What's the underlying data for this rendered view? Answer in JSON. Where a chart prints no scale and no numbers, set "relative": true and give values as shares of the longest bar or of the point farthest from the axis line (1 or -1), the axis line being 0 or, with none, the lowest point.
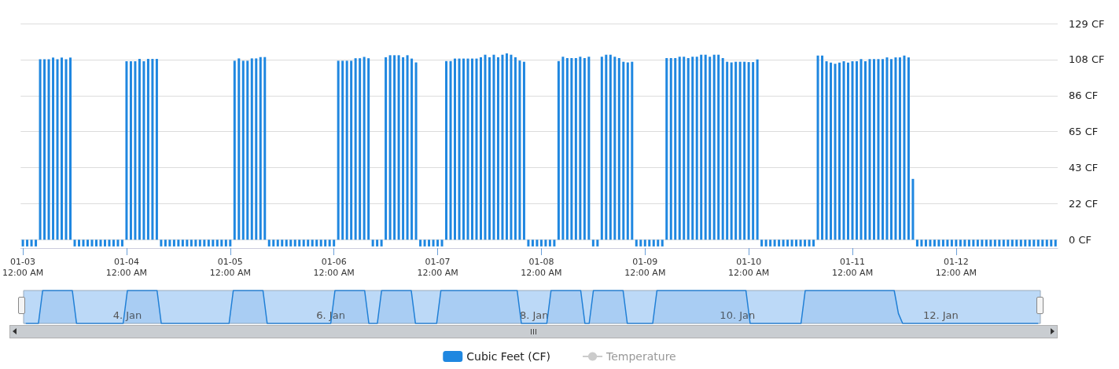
{
  "chart_data": [
    {
      "type": "bar",
      "categories": [
        "01-03\n12:00 AM",
        null,
        null,
        null,
        null,
        null,
        null,
        null,
        null,
        null,
        null,
        null,
        null,
        null,
        null,
        null,
        null,
        null,
        null,
        null,
        null,
        null,
        null,
        null,
        "01-04\n12:00 AM",
        null,
        null,
        null,
        null,
        null,
        null,
        null,
        null,
        null,
        null,
        null,
        null,
        null,
        null,
        null,
        null,
        null,
        null,
        null,
        null,
        null,
        null,
        null,
        "01-05\n12:00 AM",
        null,
        null,
        null,
        null,
        null,
        null,
        null,
        null,
        null,
        null,
        null,
        null,
        null,
        null,
        null,
        null,
        null,
        null,
        null,
        null,
        null,
        null,
        null,
        "01-06\n12:00 AM",
        null,
        null,
        null,
        null,
        null,
        null,
        null,
        null,
        null,
        null,
        null,
        null,
        null,
        null,
        null,
        null,
        null,
        null,
        null,
        null,
        null,
        null,
        null,
        "01-07\n12:00 AM",
        null,
        null,
        null,
        null,
        null,
        null,
        null,
        null,
        null,
        null,
        null,
        null,
        null,
        null,
        null,
        null,
        null,
        null,
        null,
        null,
        null,
        null,
        null,
        "01-08\n12:00 AM",
        null,
        null,
        null,
        null,
        null,
        null,
        null,
        null,
        null,
        null,
        null,
        null,
        null,
        null,
        null,
        null,
        null,
        null,
        null,
        null,
        null,
        null,
        null,
        "01-09\n12:00 AM",
        null,
        null,
        null,
        null,
        null,
        null,
        null,
        null,
        null,
        null,
        null,
        null,
        null,
        null,
        null,
        null,
        null,
        null,
        null,
        null,
        null,
        null,
        null,
        "01-10\n12:00 AM",
        null,
        null,
        null,
        null,
        null,
        null,
        null,
        null,
        null,
        null,
        null,
        null,
        null,
        null,
        null,
        null,
        null,
        null,
        null,
        null,
        null,
        null,
        null,
        "01-11\n12:00 AM",
        null,
        null,
        null,
        null,
        null,
        null,
        null,
        null,
        null,
        null,
        null,
        null,
        null,
        null,
        null,
        null,
        null,
        null,
        null,
        null,
        null,
        null,
        null,
        "01-12\n12:00 AM",
        null,
        null,
        null,
        null,
        null,
        null,
        null,
        null,
        null,
        null,
        null,
        null,
        null,
        null,
        null,
        null,
        null,
        null,
        null,
        null,
        null,
        null,
        null
      ],
      "ylim": [
        -5,
        129
      ],
      "yticks": [
        {
          "value": 0,
          "label": "0 CF"
        },
        {
          "value": 21.5,
          "label": "22 CF"
        },
        {
          "value": 43,
          "label": "43 CF"
        },
        {
          "value": 64.5,
          "label": "65 CF"
        },
        {
          "value": 86,
          "label": "86 CF"
        },
        {
          "value": 107.5,
          "label": "108 CF"
        },
        {
          "value": 129,
          "label": "129 CF"
        }
      ],
      "grid": "y",
      "legend": "bottom",
      "series": [
        {
          "name": "Cubic Feet (CF)",
          "color": "#1f87e0",
          "values": [
            -4,
            -4,
            -4,
            -4,
            107.7,
            107.7,
            107.7,
            108.7,
            107.7,
            108.7,
            107.7,
            108.7,
            -4,
            -4,
            -4,
            -4,
            -4,
            -4,
            -4,
            -4,
            -4,
            -4,
            -4,
            -4,
            106.5,
            106.5,
            106.5,
            107.9,
            106.5,
            107.9,
            107.9,
            107.9,
            -4,
            -4,
            -4,
            -4,
            -4,
            -4,
            -4,
            -4,
            -4,
            -4,
            -4,
            -4,
            -4,
            -4,
            -4,
            -4,
            -4,
            106.8,
            108.2,
            106.8,
            106.8,
            108.2,
            108.2,
            109,
            109,
            -4,
            -4,
            -4,
            -4,
            -4,
            -4,
            -4,
            -4,
            -4,
            -4,
            -4,
            -4,
            -4,
            -4,
            -4,
            -4,
            106.8,
            106.8,
            106.8,
            106.8,
            108.3,
            108.3,
            109.1,
            108.3,
            -4,
            -4,
            -4,
            108.9,
            110.1,
            110.1,
            110.1,
            108.9,
            110.1,
            108.1,
            105.8,
            -4,
            -4,
            -4,
            -4,
            -4,
            -4,
            106.6,
            106.6,
            108.1,
            108.1,
            108.1,
            108.1,
            108.1,
            108.1,
            108.9,
            110.4,
            108.9,
            110.4,
            108.9,
            110.4,
            111.2,
            110.4,
            108.9,
            106.9,
            106.2,
            -4,
            -4,
            -4,
            -4,
            -4,
            -4,
            -4,
            106.6,
            109.2,
            108.4,
            108.4,
            108.4,
            109.2,
            108.4,
            109.2,
            -4,
            -4,
            109.2,
            110.4,
            110.4,
            109.2,
            108.4,
            106.2,
            105.8,
            106.2,
            -4,
            -4,
            -4,
            -4,
            -4,
            -4,
            -4,
            108.4,
            108.4,
            108.4,
            109.2,
            109.2,
            108.4,
            109.2,
            109.2,
            110.4,
            110.4,
            109.2,
            110.4,
            110.4,
            108.4,
            106.2,
            105.8,
            106.2,
            106.2,
            106.2,
            106,
            106,
            107.6,
            -4,
            -4,
            -4,
            -4,
            -4,
            -4,
            -4,
            -4,
            -4,
            -4,
            -4,
            -4,
            -4,
            109.9,
            109.9,
            106.5,
            105.7,
            105,
            105.7,
            106.5,
            105.7,
            106.5,
            106.5,
            107.8,
            106.5,
            107.8,
            107.8,
            107.8,
            107.8,
            108.8,
            107.8,
            108.8,
            108.8,
            109.9,
            108.8,
            36.3,
            -4,
            -4,
            -4,
            -4,
            -4,
            -4,
            -4,
            -4,
            -4,
            -4,
            -4,
            -4,
            -4,
            -4,
            -4,
            -4,
            -4,
            -4,
            -4,
            -4,
            -4,
            -4,
            -4,
            -4,
            -4,
            -4,
            -4,
            -4,
            -4,
            -4,
            -4,
            -4,
            -4
          ]
        },
        {
          "name": "Temperature",
          "type": "line",
          "color": "#cccccc",
          "values": [
            null,
            null,
            null,
            null,
            null,
            null,
            null,
            null,
            null,
            null,
            null,
            null,
            null,
            null,
            null,
            null,
            null,
            null,
            null,
            null,
            null,
            null,
            null,
            null,
            null,
            null,
            null,
            null,
            null,
            null,
            null,
            null,
            null,
            null,
            null,
            null,
            null,
            null,
            null,
            null,
            null,
            null,
            null,
            null,
            null,
            null,
            null,
            null,
            null,
            null,
            null,
            null,
            null,
            null,
            null,
            null,
            null,
            null,
            null,
            null,
            null,
            null,
            null,
            null,
            null,
            null,
            null,
            null,
            null,
            null,
            null,
            null,
            null,
            null,
            null,
            null,
            null,
            null,
            null,
            null,
            null,
            null,
            null,
            null,
            null,
            null,
            null,
            null,
            null,
            null,
            null,
            null,
            null,
            null,
            null,
            null,
            null,
            null,
            null,
            null,
            null,
            null,
            null,
            null,
            null,
            null,
            null,
            null,
            null,
            null,
            null,
            null,
            null,
            null,
            null,
            null,
            null,
            null,
            null,
            null,
            null,
            null,
            null,
            null,
            null,
            null,
            null,
            null,
            null,
            null,
            null,
            null,
            null,
            null,
            null,
            null,
            null,
            null,
            null,
            null,
            null,
            null,
            null,
            null,
            null,
            null,
            null,
            null,
            null,
            null,
            null,
            null,
            null,
            null,
            null,
            null,
            null,
            null,
            null,
            null,
            null,
            null,
            null,
            null,
            null,
            null,
            null,
            null,
            null,
            null,
            null,
            null,
            null,
            null,
            null,
            null,
            null,
            null,
            null,
            null,
            null,
            null,
            null,
            null,
            null,
            null,
            null,
            null,
            null,
            null,
            null,
            null,
            null,
            null,
            null,
            null,
            null,
            null,
            null,
            null,
            null,
            null,
            null,
            null,
            null,
            null,
            null,
            null,
            null,
            null,
            null,
            null,
            null,
            null,
            null,
            null,
            null,
            null,
            null,
            null,
            null,
            null,
            null,
            null,
            null,
            null,
            null,
            null,
            null,
            null,
            null,
            null,
            null,
            null,
            null,
            null,
            null,
            null,
            null,
            null
          ]
        }
      ]
    },
    {
      "type": "area",
      "relative": true,
      "tick_labels": "x",
      "marker": "none",
      "categories": [
        null,
        null,
        null,
        null,
        null,
        null,
        null,
        null,
        null,
        null,
        null,
        null,
        null,
        null,
        null,
        null,
        null,
        null,
        null,
        null,
        null,
        null,
        null,
        null,
        "4. Jan",
        null,
        null,
        null,
        null,
        null,
        null,
        null,
        null,
        null,
        null,
        null,
        null,
        null,
        null,
        null,
        null,
        null,
        null,
        null,
        null,
        null,
        null,
        null,
        null,
        null,
        null,
        null,
        null,
        null,
        null,
        null,
        null,
        null,
        null,
        null,
        null,
        null,
        null,
        null,
        null,
        null,
        null,
        null,
        null,
        null,
        null,
        null,
        "6. Jan",
        null,
        null,
        null,
        null,
        null,
        null,
        null,
        null,
        null,
        null,
        null,
        null,
        null,
        null,
        null,
        null,
        null,
        null,
        null,
        null,
        null,
        null,
        null,
        null,
        null,
        null,
        null,
        null,
        null,
        null,
        null,
        null,
        null,
        null,
        null,
        null,
        null,
        null,
        null,
        null,
        null,
        null,
        null,
        null,
        null,
        null,
        null,
        "8. Jan",
        null,
        null,
        null,
        null,
        null,
        null,
        null,
        null,
        null,
        null,
        null,
        null,
        null,
        null,
        null,
        null,
        null,
        null,
        null,
        null,
        null,
        null,
        null,
        null,
        null,
        null,
        null,
        null,
        null,
        null,
        null,
        null,
        null,
        null,
        null,
        null,
        null,
        null,
        null,
        null,
        null,
        null,
        null,
        null,
        null,
        null,
        null,
        "10. Jan",
        null,
        null,
        null,
        null,
        null,
        null,
        null,
        null,
        null,
        null,
        null,
        null,
        null,
        null,
        null,
        null,
        null,
        null,
        null,
        null,
        null,
        null,
        null,
        null,
        null,
        null,
        null,
        null,
        null,
        null,
        null,
        null,
        null,
        null,
        null,
        null,
        null,
        null,
        null,
        null,
        null,
        null,
        null,
        null,
        null,
        null,
        null,
        "12. Jan",
        null,
        null,
        null,
        null,
        null,
        null,
        null,
        null,
        null,
        null,
        null,
        null,
        null,
        null,
        null,
        null,
        null,
        null,
        null,
        null,
        null,
        null,
        null
      ],
      "series": [
        {
          "color": "#1f7fd6",
          "values": [
            0,
            0,
            0,
            0,
            1,
            1,
            1,
            1,
            1,
            1,
            1,
            1,
            0,
            0,
            0,
            0,
            0,
            0,
            0,
            0,
            0,
            0,
            0,
            0,
            1,
            1,
            1,
            1,
            1,
            1,
            1,
            1,
            0,
            0,
            0,
            0,
            0,
            0,
            0,
            0,
            0,
            0,
            0,
            0,
            0,
            0,
            0,
            0,
            0,
            1,
            1,
            1,
            1,
            1,
            1,
            1,
            1,
            0,
            0,
            0,
            0,
            0,
            0,
            0,
            0,
            0,
            0,
            0,
            0,
            0,
            0,
            0,
            0,
            1,
            1,
            1,
            1,
            1,
            1,
            1,
            1,
            0,
            0,
            0,
            1,
            1,
            1,
            1,
            1,
            1,
            1,
            1,
            0,
            0,
            0,
            0,
            0,
            0,
            1,
            1,
            1,
            1,
            1,
            1,
            1,
            1,
            1,
            1,
            1,
            1,
            1,
            1,
            1,
            1,
            1,
            1,
            1,
            0,
            0,
            0,
            0,
            0,
            0,
            0,
            1,
            1,
            1,
            1,
            1,
            1,
            1,
            1,
            0,
            0,
            1,
            1,
            1,
            1,
            1,
            1,
            1,
            1,
            0,
            0,
            0,
            0,
            0,
            0,
            0,
            1,
            1,
            1,
            1,
            1,
            1,
            1,
            1,
            1,
            1,
            1,
            1,
            1,
            1,
            1,
            1,
            1,
            1,
            1,
            1,
            1,
            1,
            0,
            0,
            0,
            0,
            0,
            0,
            0,
            0,
            0,
            0,
            0,
            0,
            0,
            1,
            1,
            1,
            1,
            1,
            1,
            1,
            1,
            1,
            1,
            1,
            1,
            1,
            1,
            1,
            1,
            1,
            1,
            1,
            1,
            1,
            1,
            0.3,
            0,
            0,
            0,
            0,
            0,
            0,
            0,
            0,
            0,
            0,
            0,
            0,
            0,
            0,
            0,
            0,
            0,
            0,
            0,
            0,
            0,
            0,
            0,
            0,
            0,
            0,
            0,
            0,
            0,
            0,
            0,
            0,
            0
          ]
        }
      ]
    }
  ]
}
